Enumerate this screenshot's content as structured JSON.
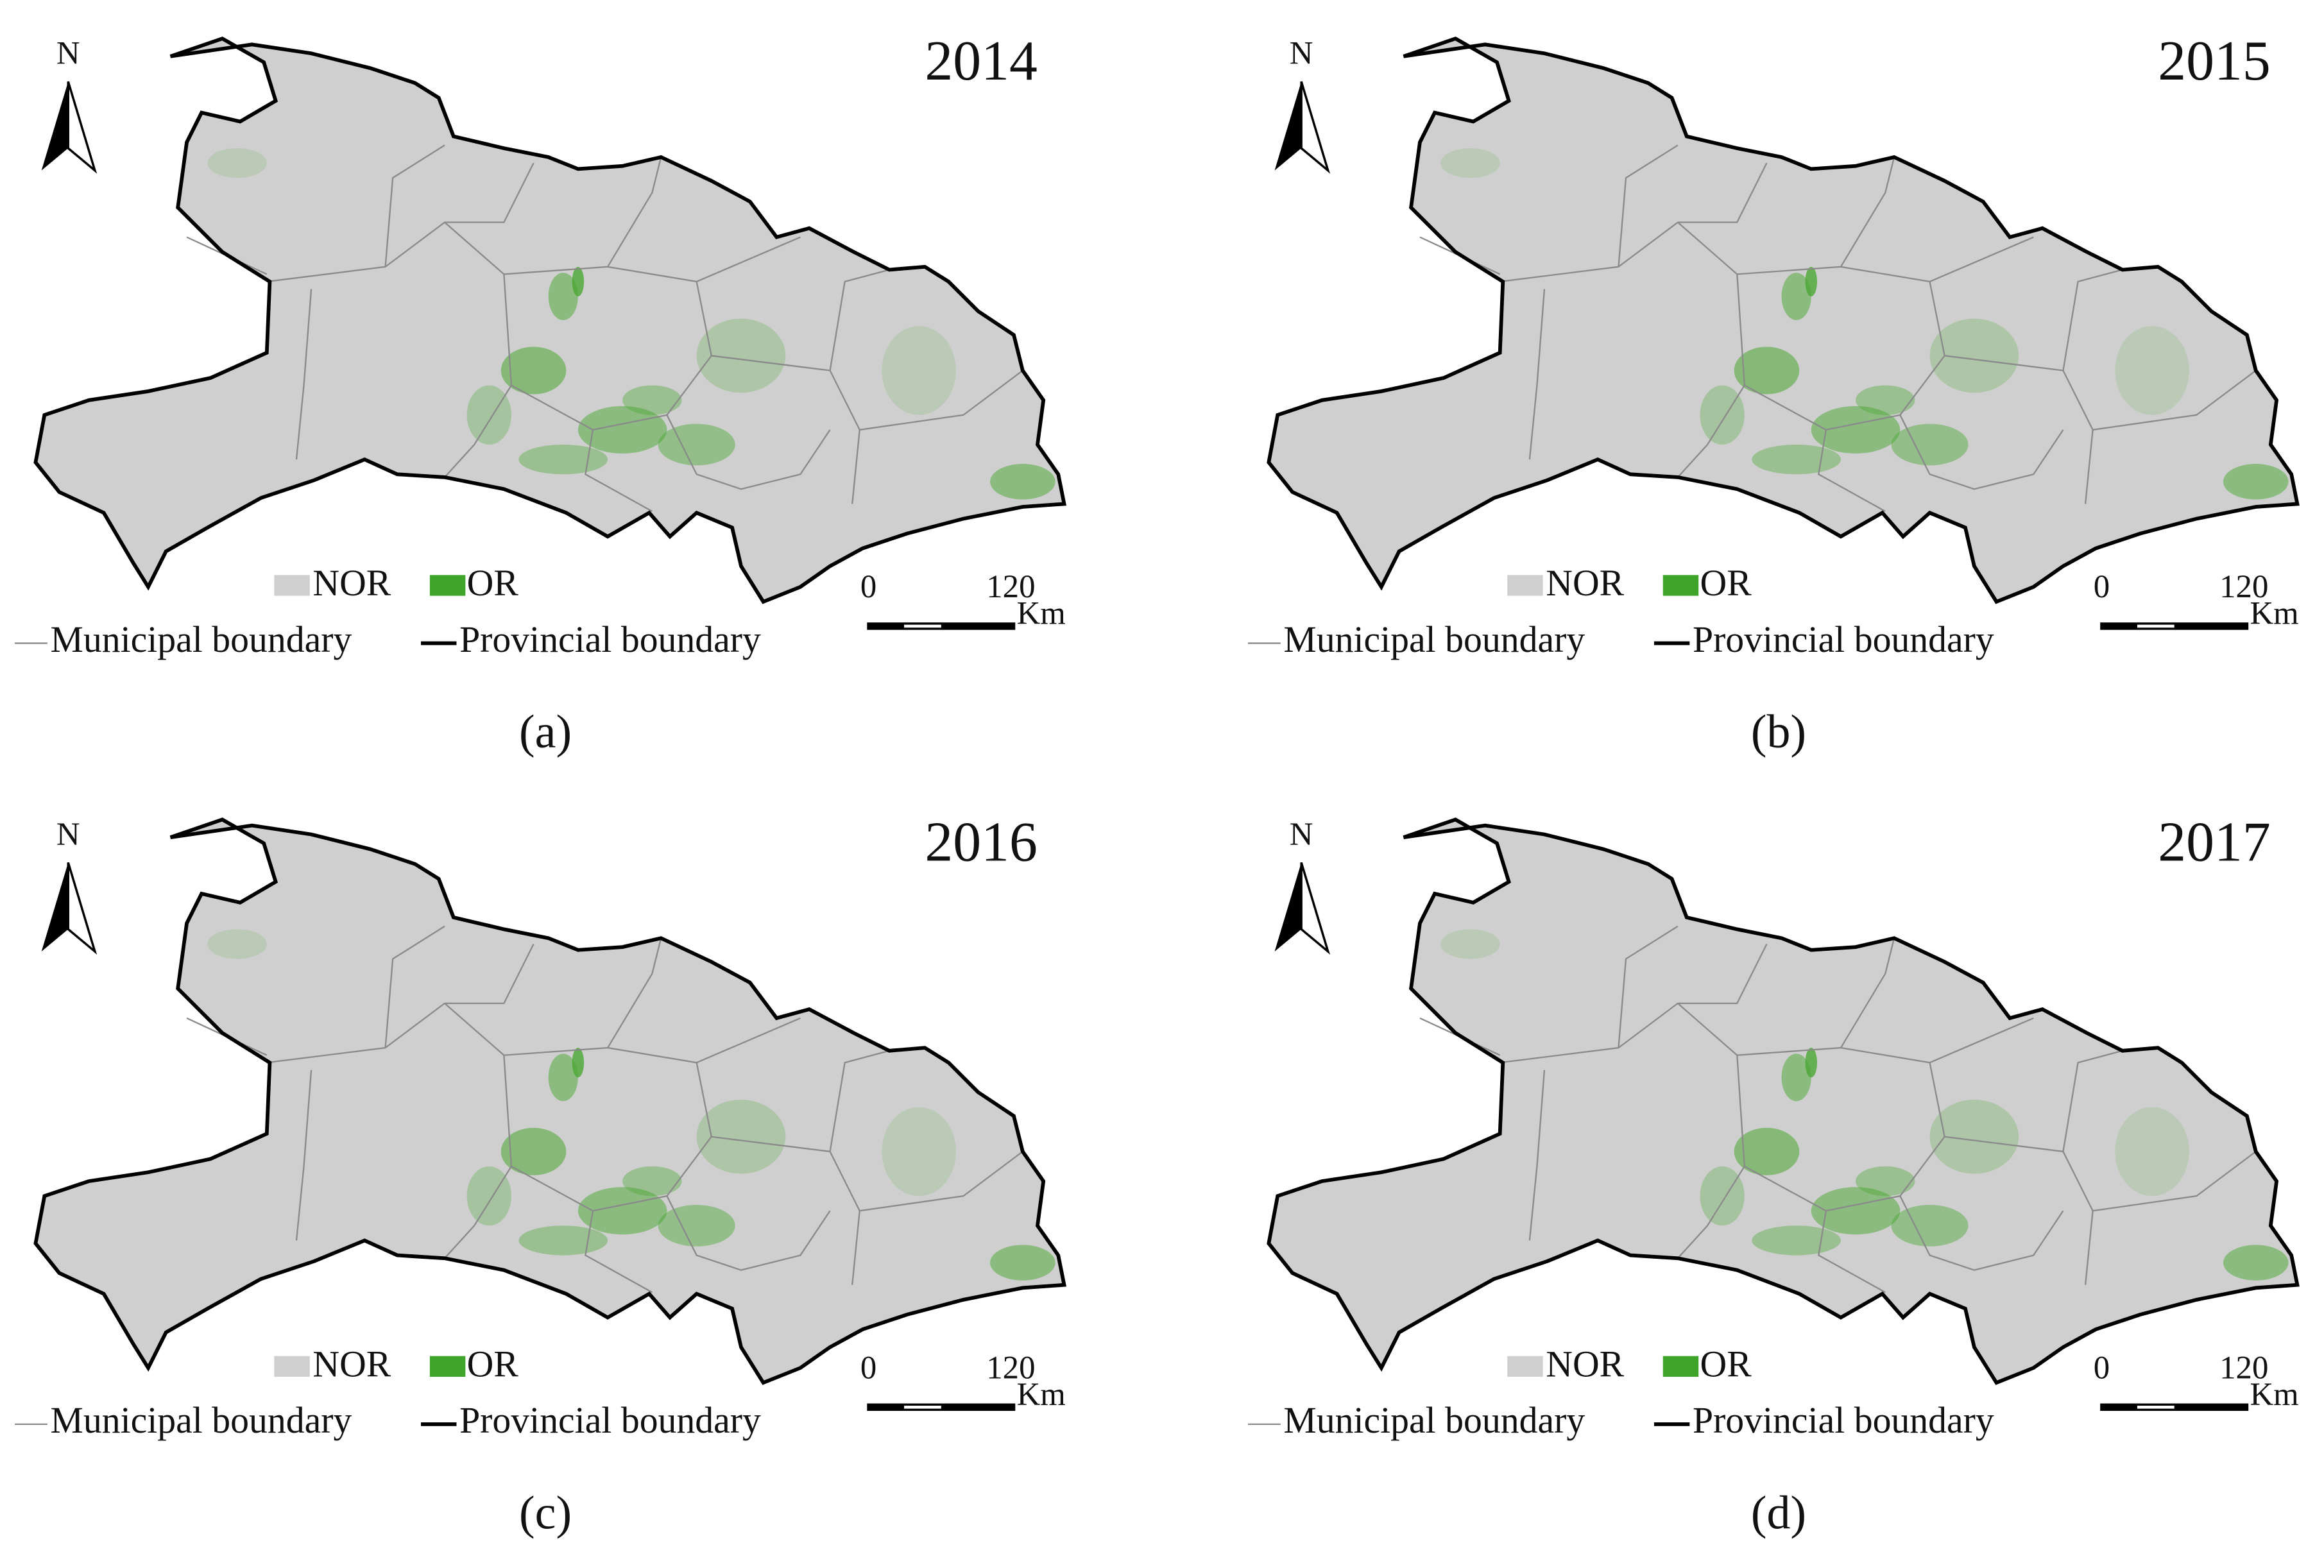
{
  "panels": [
    {
      "year": "2014",
      "label": "(a)",
      "north": "N",
      "legend": [
        "NOR",
        "OR"
      ],
      "scale": {
        "start": 0,
        "end": 120,
        "unit": "Km"
      },
      "boundaries": [
        "Municipal boundary",
        "Provincial boundary"
      ]
    },
    {
      "year": "2015",
      "label": "(b)",
      "north": "N",
      "legend": [
        "NOR",
        "OR"
      ],
      "scale": {
        "start": 0,
        "end": 120,
        "unit": "Km"
      },
      "boundaries": [
        "Municipal boundary",
        "Provincial boundary"
      ]
    },
    {
      "year": "2016",
      "label": "(c)",
      "north": "N",
      "legend": [
        "NOR",
        "OR"
      ],
      "scale": {
        "start": 0,
        "end": 120,
        "unit": "Km"
      },
      "boundaries": [
        "Municipal boundary",
        "Provincial boundary"
      ]
    },
    {
      "year": "2017",
      "label": "(d)",
      "north": "N",
      "legend": [
        "NOR",
        "OR"
      ],
      "scale": {
        "start": 0,
        "end": 120,
        "unit": "Km"
      },
      "boundaries": [
        "Municipal boundary",
        "Provincial boundary"
      ]
    }
  ]
}
